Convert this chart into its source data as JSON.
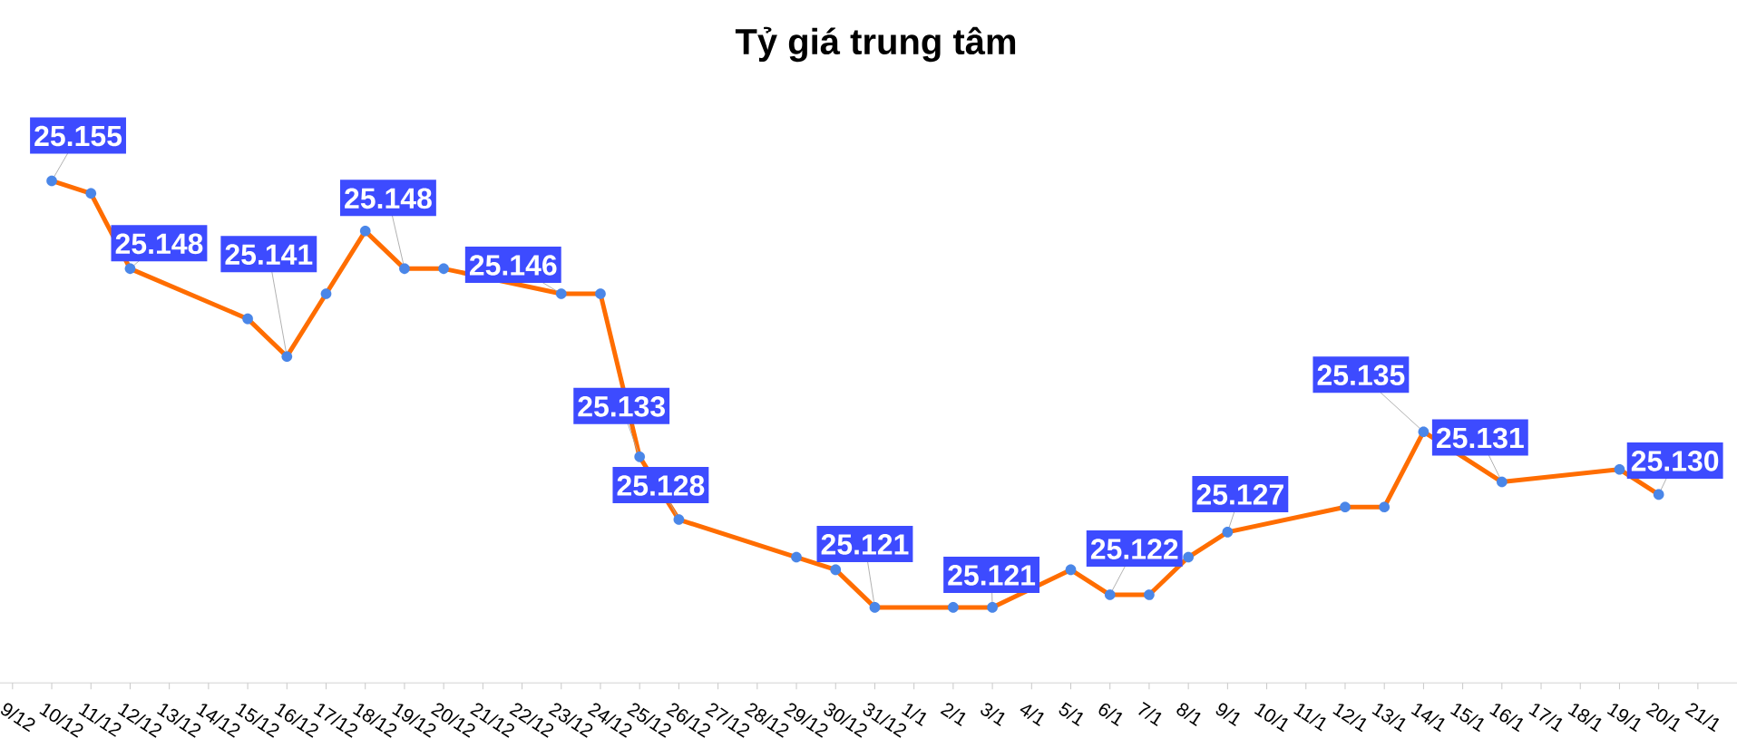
{
  "chart_data": {
    "type": "line",
    "title": "Tỷ giá trung tâm",
    "categories": [
      "9/12",
      "10/12",
      "11/12",
      "12/12",
      "13/12",
      "14/12",
      "15/12",
      "16/12",
      "17/12",
      "18/12",
      "19/12",
      "20/12",
      "21/12",
      "22/12",
      "23/12",
      "24/12",
      "25/12",
      "26/12",
      "27/12",
      "28/12",
      "29/12",
      "30/12",
      "31/12",
      "1/1",
      "2/1",
      "3/1",
      "4/1",
      "5/1",
      "6/1",
      "7/1",
      "8/1",
      "9/1",
      "10/1",
      "11/1",
      "12/1",
      "13/1",
      "14/1",
      "15/1",
      "16/1",
      "17/1",
      "18/1",
      "19/1",
      "20/1",
      "21/1"
    ],
    "series": [
      {
        "color": "#ff6d00",
        "x": [
          "10/12",
          "11/12",
          "12/12",
          "15/12",
          "16/12",
          "17/12",
          "18/12",
          "19/12",
          "20/12",
          "23/12",
          "24/12",
          "25/12",
          "26/12",
          "29/12",
          "30/12",
          "31/12",
          "2/1",
          "3/1",
          "5/1",
          "6/1",
          "7/1",
          "8/1",
          "9/1",
          "12/1",
          "13/1",
          "14/1",
          "16/1",
          "19/1",
          "20/1"
        ],
        "values": [
          25155,
          25154,
          25148,
          25144,
          25141,
          25146,
          25151,
          25148,
          25148,
          25146,
          25146,
          25133,
          25128,
          25125,
          25124,
          25121,
          25121,
          25121,
          25124,
          25122,
          25122,
          25125,
          25127,
          25129,
          25129,
          25135,
          25131,
          25132,
          25130
        ],
        "value_labels": [
          "25.155",
          null,
          "25.148",
          null,
          "25.141",
          null,
          null,
          "25.148",
          null,
          "25.146",
          null,
          "25.133",
          "25.128",
          null,
          null,
          "25.121",
          null,
          "25.121",
          null,
          "25.122",
          null,
          null,
          "25.127",
          null,
          null,
          "25.135",
          "25.131",
          null,
          "25.130"
        ],
        "colors": [
          "#4a86e8",
          "#4a86e8",
          "#4a86e8",
          "#4a86e8",
          "#4a86e8",
          "#4a86e8",
          "#4a86e8",
          "#4a86e8",
          "#4a86e8",
          "#4a86e8",
          "#4a86e8",
          "#4a86e8",
          "#4a86e8",
          "#4a86e8",
          "#4a86e8",
          "#4a86e8",
          "#4a86e8",
          "#4a86e8",
          "#4a86e8",
          "#4a86e8",
          "#4a86e8",
          "#4a86e8",
          "#4a86e8",
          "#4a86e8",
          "#4a86e8",
          "#4a86e8",
          "#4a86e8",
          "#4a86e8",
          "#4a86e8"
        ]
      }
    ],
    "marker": "circle",
    "line_style": "solid",
    "tick_labels": "x"
  }
}
